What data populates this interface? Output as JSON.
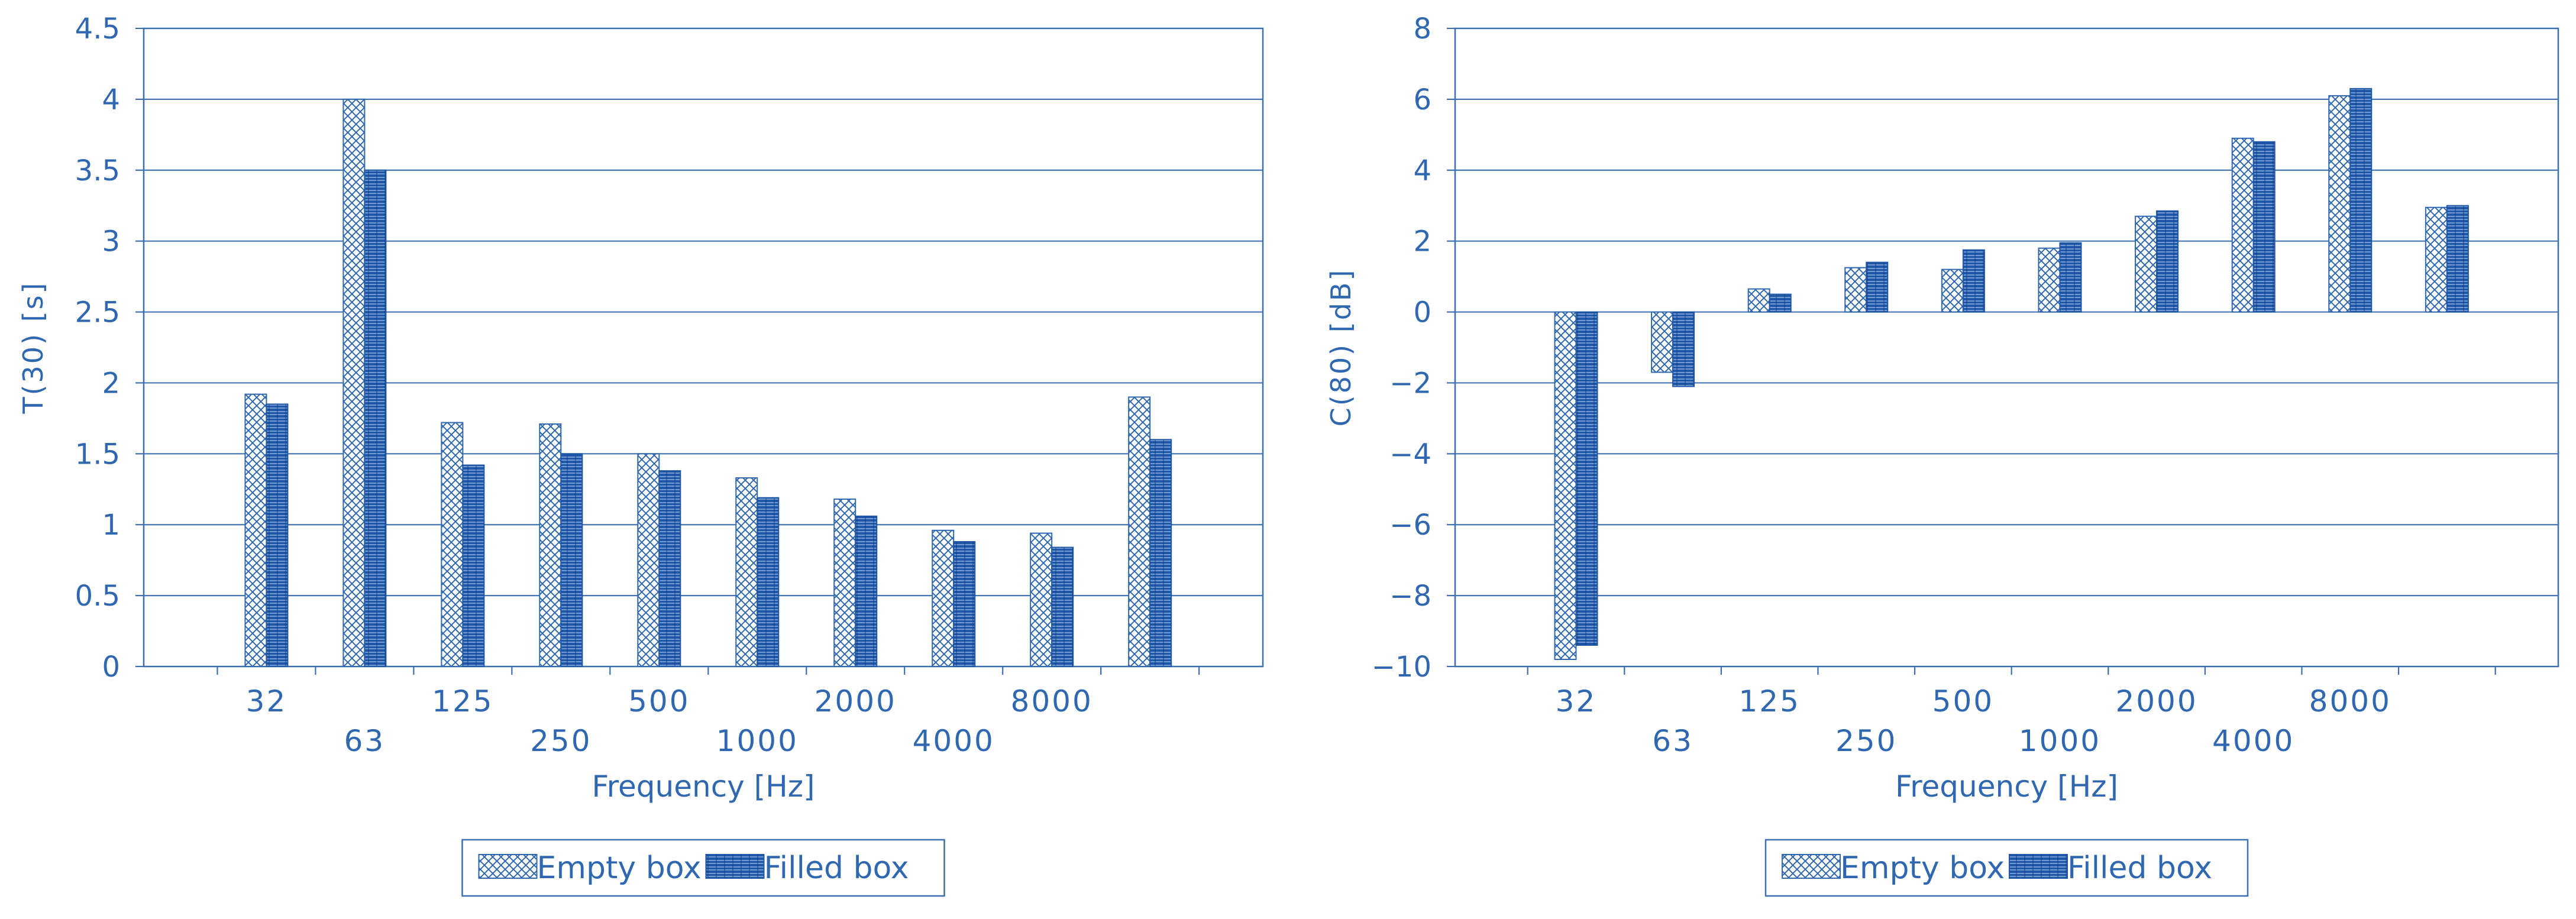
{
  "colors": {
    "axis": "#3d6fb0",
    "text": "#2f67b1",
    "grid": "#4674b8",
    "empty": "#2f67b1",
    "filled": "#1f56a6",
    "filledHi": "#8fb3e4"
  },
  "chart_data": [
    {
      "type": "bar",
      "ylabel": "T(30) [s]",
      "xlabel": "Frequency [Hz]",
      "ylim": [
        0,
        4.5
      ],
      "yticks": [
        0,
        0.5,
        1,
        1.5,
        2,
        2.5,
        3,
        3.5,
        4,
        4.5
      ],
      "ytick_labels": [
        "0",
        "0.5",
        "1",
        "1.5",
        "2",
        "2.5",
        "3",
        "3.5",
        "4",
        "4.5"
      ],
      "grid": true,
      "categories": [
        "32",
        "63",
        "125",
        "250",
        "500",
        "1000",
        "2000",
        "4000",
        "8000",
        ""
      ],
      "series": [
        {
          "name": "Empty box",
          "values": [
            1.92,
            4.0,
            1.72,
            1.71,
            1.5,
            1.33,
            1.18,
            0.96,
            0.94,
            1.9
          ]
        },
        {
          "name": "Filled box",
          "values": [
            1.85,
            3.5,
            1.42,
            1.5,
            1.38,
            1.19,
            1.06,
            0.88,
            0.84,
            1.6
          ]
        }
      ],
      "legend": {
        "position": "bottom",
        "labels": [
          "Empty box",
          "Filled box"
        ]
      }
    },
    {
      "type": "bar",
      "ylabel": "C(80) [dB]",
      "xlabel": "Frequency [Hz]",
      "ylim": [
        -10,
        8
      ],
      "yticks": [
        -10,
        -8,
        -6,
        -4,
        -2,
        0,
        2,
        4,
        6,
        8
      ],
      "ytick_labels": [
        "−10",
        "−8",
        "−6",
        "−4",
        "−2",
        "0",
        "2",
        "4",
        "6",
        "8"
      ],
      "grid": true,
      "categories": [
        "32",
        "63",
        "125",
        "250",
        "500",
        "1000",
        "2000",
        "4000",
        "8000",
        ""
      ],
      "series": [
        {
          "name": "Empty box",
          "values": [
            -9.8,
            -1.7,
            0.65,
            1.25,
            1.2,
            1.8,
            2.7,
            4.9,
            6.1,
            2.95
          ]
        },
        {
          "name": "Filled box",
          "values": [
            -9.4,
            -2.1,
            0.5,
            1.4,
            1.75,
            1.95,
            2.85,
            4.8,
            6.3,
            3.0
          ]
        }
      ],
      "legend": {
        "position": "bottom",
        "labels": [
          "Empty box",
          "Filled box"
        ]
      }
    }
  ]
}
